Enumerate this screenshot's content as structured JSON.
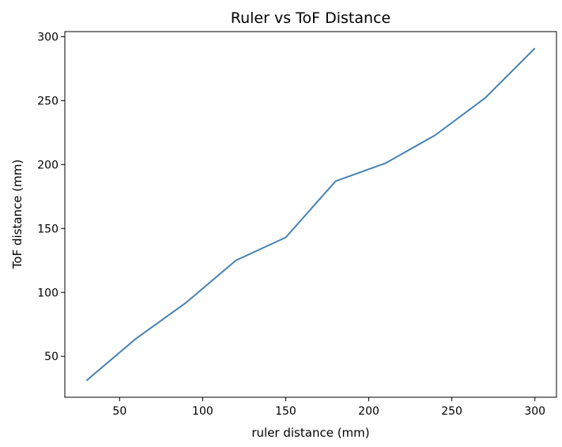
{
  "chart_data": {
    "type": "line",
    "title": "Ruler vs ToF Distance",
    "xlabel": "ruler distance (mm)",
    "ylabel": "ToF distance (mm)",
    "xlim": [
      17,
      313
    ],
    "ylim": [
      18,
      304
    ],
    "xticks": [
      50,
      100,
      150,
      200,
      250,
      300
    ],
    "yticks": [
      50,
      100,
      150,
      200,
      250,
      300
    ],
    "grid": false,
    "series": [
      {
        "color": "#4682b4",
        "x": [
          30,
          60,
          90,
          120,
          150,
          180,
          210,
          240,
          270,
          300
        ],
        "y": [
          31,
          64,
          92,
          125,
          143,
          187,
          201,
          223,
          252,
          291
        ]
      }
    ]
  }
}
